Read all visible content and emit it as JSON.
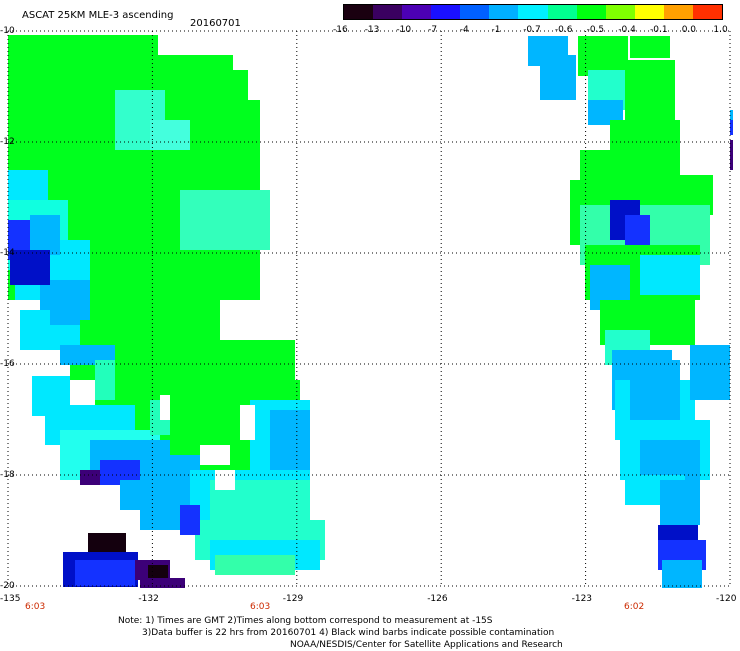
{
  "header": {
    "title": "ASCAT 25KM MLE-3 ascending",
    "date": "20160701"
  },
  "colorbar": {
    "labels": [
      "-16",
      "-13",
      "-10",
      "-7",
      "-4",
      "-1",
      "-0.7",
      "-0.6",
      "-0.5",
      "-0.4",
      "-0.1",
      "0.0",
      "1.0"
    ],
    "colors": [
      "#1a0010",
      "#3a0060",
      "#4c00b4",
      "#1a10ff",
      "#0060ff",
      "#00b0ff",
      "#00f0ff",
      "#00ff90",
      "#00ff10",
      "#80ff00",
      "#ffff00",
      "#ffa000",
      "#ff3000"
    ]
  },
  "map": {
    "lon_ticks": [
      "-135",
      "-132",
      "-129",
      "-126",
      "-123",
      "-120"
    ],
    "lat_ticks": [
      "-10",
      "-12",
      "-14",
      "-16",
      "-18",
      "-20"
    ],
    "times": [
      "6:03",
      "6:03",
      "6:02"
    ]
  },
  "notes": {
    "line1": "Note: 1) Times are GMT 2)Times along bottom correspond to measurement at -15S",
    "line2": "3)Data buffer is 22 hrs from 20160701 4) Black wind barbs indicate possible contamination",
    "line3": "NOAA/NESDIS/Center for Satellite Applications and Research"
  },
  "style": {
    "green": "#00ff1e",
    "cyan": "#00e8ff",
    "sky": "#00b6ff",
    "blue": "#1432ff",
    "navy": "#0010c8",
    "purple": "#3c0078",
    "black": "#14000e"
  }
}
